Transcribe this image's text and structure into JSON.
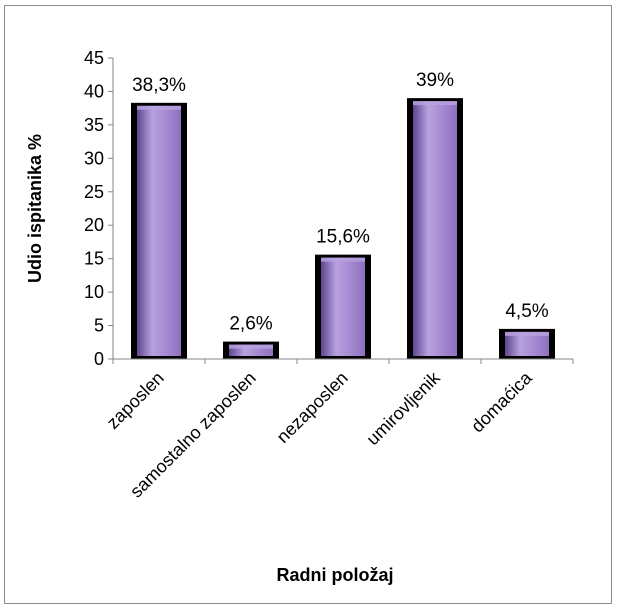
{
  "chart_data": {
    "type": "bar",
    "title": "",
    "xlabel": "Radni položaj",
    "ylabel": "Udio ispitanika %",
    "categories": [
      "zaposlen",
      "samostalno zaposlen",
      "nezaposlen",
      "umirovljenik",
      "domaćica"
    ],
    "values": [
      38.3,
      2.6,
      15.6,
      39,
      4.5
    ],
    "data_labels": [
      "38,3%",
      "2,6%",
      "15,6%",
      "39%",
      "4,5%"
    ],
    "ylim": [
      0,
      45
    ],
    "yticks": [
      0,
      5,
      10,
      15,
      20,
      25,
      30,
      35,
      40,
      45
    ],
    "grid": false,
    "legend": "none",
    "colors": {
      "bar_fill": "#8e70c0",
      "bar_fill_light": "#b9a2e0",
      "bar_fill_dark": "#5e4690",
      "bar_outline": "#000000",
      "axis": "#868686"
    }
  }
}
